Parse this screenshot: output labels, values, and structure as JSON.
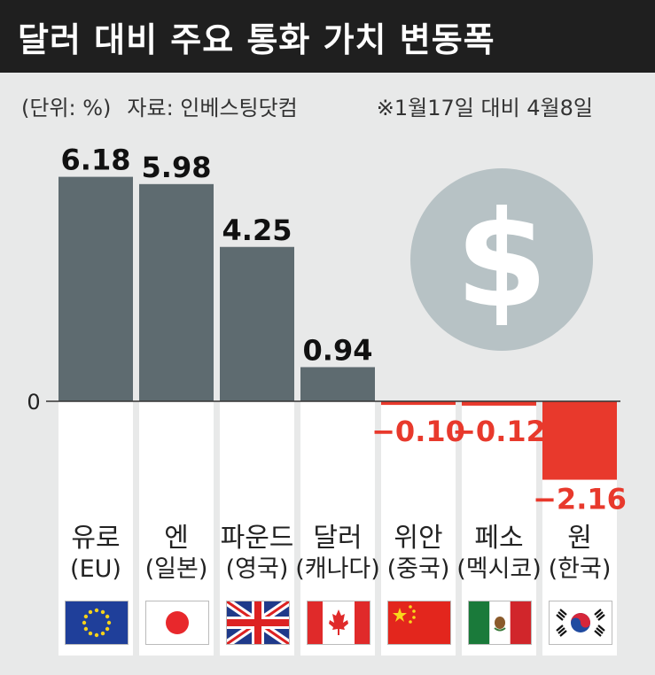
{
  "title": "달러 대비 주요 통화 가치 변동폭",
  "subtitle": {
    "unit": "(단위: %)",
    "source": "자료: 인베스팅닷컴"
  },
  "note": "※1월17일 대비 4월8일",
  "colors": {
    "positive": "#5e6b70",
    "negative": "#e8392c",
    "negative_text": "#e8392c",
    "background": "#e8e9e9",
    "panel": "#ffffff",
    "coin": "#b7c2c5",
    "coin_symbol": "#ffffff"
  },
  "icons": [
    "dollar-coin-icon",
    "eu-flag-icon",
    "japan-flag-icon",
    "uk-flag-icon",
    "canada-flag-icon",
    "china-flag-icon",
    "mexico-flag-icon",
    "korea-flag-icon"
  ],
  "chart_data": {
    "type": "bar",
    "categories": [
      "유로",
      "엔",
      "파운드",
      "달러",
      "위안",
      "페소",
      "원"
    ],
    "countries": [
      "(EU)",
      "(일본)",
      "(영국)",
      "(캐나다)",
      "(중국)",
      "(멕시코)",
      "(한국)"
    ],
    "values": [
      6.18,
      5.98,
      4.25,
      0.94,
      -0.1,
      -0.12,
      -2.16
    ],
    "value_labels": [
      "6.18",
      "5.98",
      "4.25",
      "0.94",
      "−0.10",
      "−0.12",
      "−2.16"
    ],
    "zero_label": "0",
    "ylim": [
      -2.16,
      6.18
    ],
    "grid": false,
    "legend": "none"
  }
}
